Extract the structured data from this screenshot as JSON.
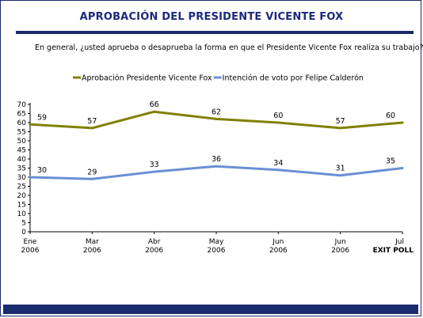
{
  "chart_data": {
    "type": "line",
    "title": "APROBACIÓN DEL PRESIDENTE VICENTE FOX",
    "subtitle": "En general, ¿usted aprueba o desaprueba la forma en que el Presidente Vicente Fox  realiza su trabajo?",
    "categories": [
      [
        "Ene",
        "2006"
      ],
      [
        "Mar",
        "2006"
      ],
      [
        "Abr",
        "2006"
      ],
      [
        "May",
        "2006"
      ],
      [
        "Jun",
        "2006"
      ],
      [
        "Jun",
        "2006"
      ],
      [
        "Jul",
        "EXIT POLL"
      ]
    ],
    "series": [
      {
        "name": "Aprobación Presidente Vicente Fox",
        "values": [
          59,
          57,
          66,
          62,
          60,
          57,
          60
        ],
        "color": "#808000"
      },
      {
        "name": "Intención de voto por Felipe Calderón",
        "values": [
          30,
          29,
          33,
          36,
          34,
          31,
          35
        ],
        "color": "#6a8fd4"
      }
    ],
    "ylim": [
      0,
      70
    ],
    "yticks": [
      0,
      5,
      10,
      15,
      20,
      25,
      30,
      35,
      40,
      45,
      50,
      55,
      60,
      65,
      70
    ],
    "grid": false,
    "legend": "top"
  }
}
